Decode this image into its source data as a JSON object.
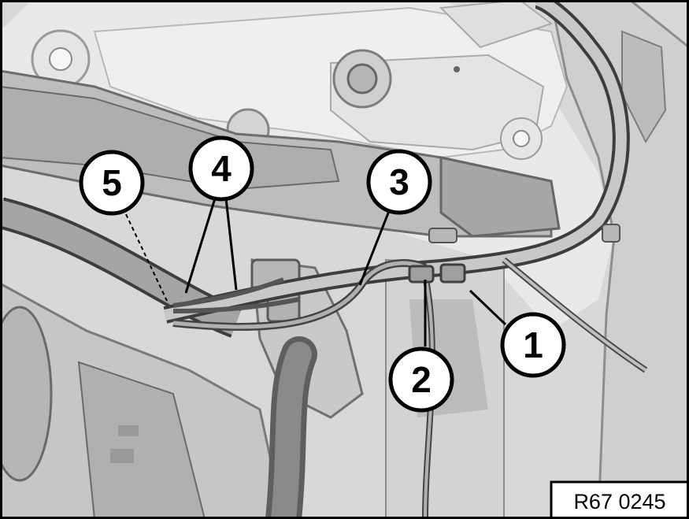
{
  "figure": {
    "reference_code": "R67 0245",
    "callouts": [
      {
        "id": "c1",
        "label": "1"
      },
      {
        "id": "c2",
        "label": "2"
      },
      {
        "id": "c3",
        "label": "3"
      },
      {
        "id": "c4",
        "label": "4"
      },
      {
        "id": "c5",
        "label": "5"
      }
    ]
  }
}
